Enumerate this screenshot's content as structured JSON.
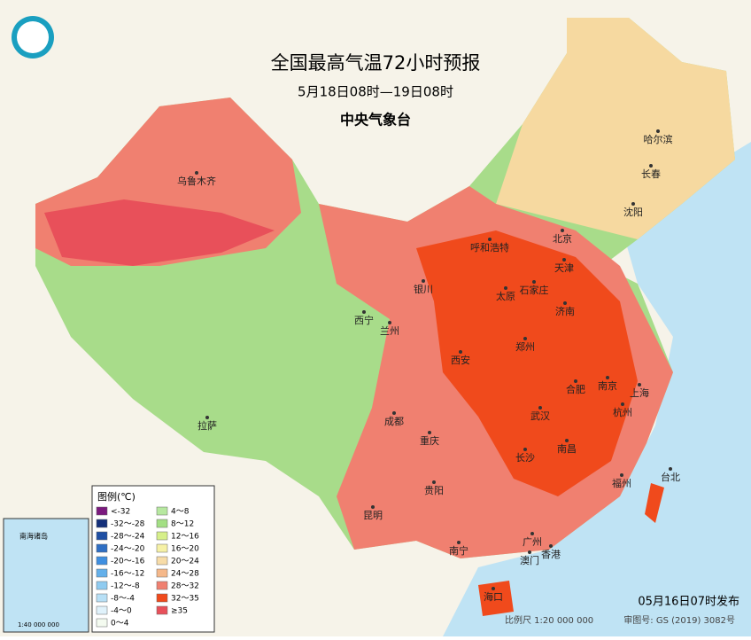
{
  "header": {
    "title": "全国最高气温72小时预报",
    "subtitle": "5月18日08时—19日08时",
    "agency": "中央气象台"
  },
  "cities": [
    "乌鲁木齐",
    "呼和浩特",
    "北京",
    "天津",
    "哈尔滨",
    "长春",
    "沈阳",
    "银川",
    "石家庄",
    "太原",
    "济南",
    "西宁",
    "兰州",
    "郑州",
    "西安",
    "合肥",
    "南京",
    "上海",
    "武汉",
    "杭州",
    "成都",
    "重庆",
    "拉萨",
    "长沙",
    "南昌",
    "福州",
    "台北",
    "贵阳",
    "昆明",
    "广州",
    "南宁",
    "澳门",
    "香港",
    "海口"
  ],
  "legend": {
    "title": "图例(℃)",
    "items": [
      {
        "label": "<-32",
        "color": "#7b1a7e"
      },
      {
        "label": "-32～-28",
        "color": "#14307a"
      },
      {
        "label": "-28～-24",
        "color": "#1f4fa3"
      },
      {
        "label": "-24～-20",
        "color": "#2f6fc4"
      },
      {
        "label": "-20～-16",
        "color": "#3f8fe0"
      },
      {
        "label": "-16～-12",
        "color": "#64b0ea"
      },
      {
        "label": "-12～-8",
        "color": "#8fcbf0"
      },
      {
        "label": "-8～-4",
        "color": "#b8e0f6"
      },
      {
        "label": "-4～0",
        "color": "#e0f2fb"
      },
      {
        "label": "0～4",
        "color": "#f4fbf0"
      },
      {
        "label": "4～8",
        "color": "#b7e8a0"
      },
      {
        "label": "8～12",
        "color": "#a3df84"
      },
      {
        "label": "12～16",
        "color": "#d6ef8a"
      },
      {
        "label": "16～20",
        "color": "#f6f1a6"
      },
      {
        "label": "20～24",
        "color": "#f7dca8"
      },
      {
        "label": "24～28",
        "color": "#f5b88a"
      },
      {
        "label": "28～32",
        "color": "#f08070"
      },
      {
        "label": "32～35",
        "color": "#f04a1c"
      },
      {
        "label": "≥35",
        "color": "#e8505a"
      }
    ]
  },
  "inset": {
    "title": "南海诸岛",
    "scale": "1:40 000 000"
  },
  "footer": {
    "issued": "05月16日07时发布",
    "scale": "比例尺 1:20 000 000",
    "approval": "审图号: GS (2019) 3082号"
  }
}
